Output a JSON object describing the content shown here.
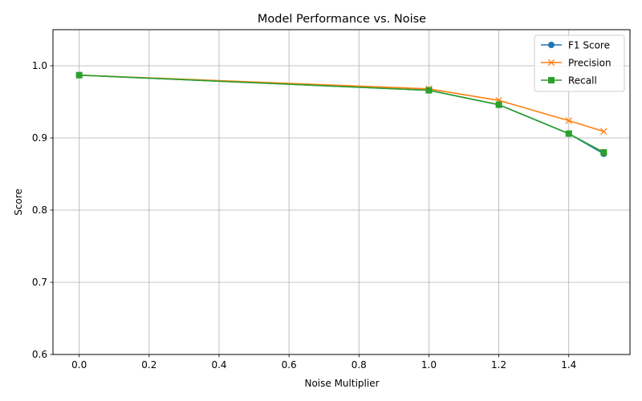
{
  "chart_data": {
    "type": "line",
    "title": "Model Performance vs. Noise",
    "xlabel": "Noise Multiplier",
    "ylabel": "Score",
    "xlim": [
      -0.075,
      1.575
    ],
    "ylim": [
      0.6,
      1.05
    ],
    "xticks": [
      "0.0",
      "0.2",
      "0.4",
      "0.6",
      "0.8",
      "1.0",
      "1.2",
      "1.4"
    ],
    "yticks": [
      "0.6",
      "0.7",
      "0.8",
      "0.9",
      "1.0"
    ],
    "grid": true,
    "legend_position": "top-right",
    "x": [
      0.0,
      1.0,
      1.2,
      1.4,
      1.5
    ],
    "series": [
      {
        "name": "F1 Score",
        "marker": "circle",
        "color": "#1f77b4",
        "values": [
          0.987,
          0.966,
          0.946,
          0.906,
          0.878
        ]
      },
      {
        "name": "Precision",
        "marker": "x",
        "color": "#ff7f0e",
        "values": [
          0.987,
          0.968,
          0.952,
          0.924,
          0.909
        ]
      },
      {
        "name": "Recall",
        "marker": "square",
        "color": "#2ca02c",
        "values": [
          0.987,
          0.966,
          0.946,
          0.906,
          0.88
        ]
      }
    ]
  }
}
